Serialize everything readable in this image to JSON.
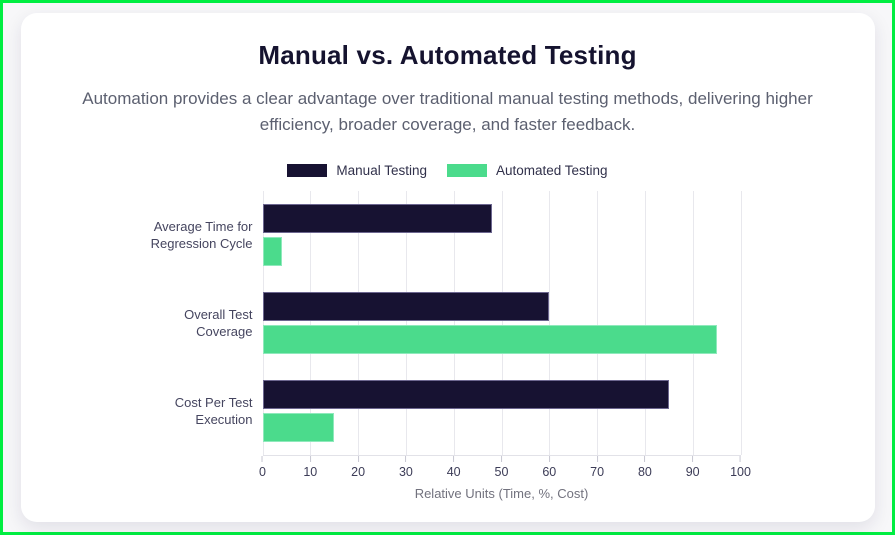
{
  "page": {
    "frame_color": "#00ee41",
    "background": "#f7f7f9"
  },
  "card": {
    "title": "Manual vs. Automated Testing",
    "subtitle": "Automation provides a clear advantage over traditional manual testing methods, delivering higher efficiency, broader coverage, and faster feedback."
  },
  "chart_data": {
    "type": "bar",
    "orientation": "horizontal",
    "categories": [
      "Average Time for Regression Cycle",
      "Overall Test Coverage",
      "Cost Per Test Execution"
    ],
    "series": [
      {
        "name": "Manual Testing",
        "color": "#171232",
        "border_color": "#6d6790",
        "values": [
          48,
          60,
          85
        ]
      },
      {
        "name": "Automated Testing",
        "color": "#4bdb8c",
        "border_color": "#8fe9bc",
        "values": [
          4,
          95,
          15
        ]
      }
    ],
    "xlabel": "Relative Units (Time, %, Cost)",
    "xlim": [
      0,
      100
    ],
    "ticks": [
      0,
      10,
      20,
      30,
      40,
      50,
      60,
      70,
      80,
      90,
      100
    ],
    "grid": true,
    "legend_position": "top"
  }
}
